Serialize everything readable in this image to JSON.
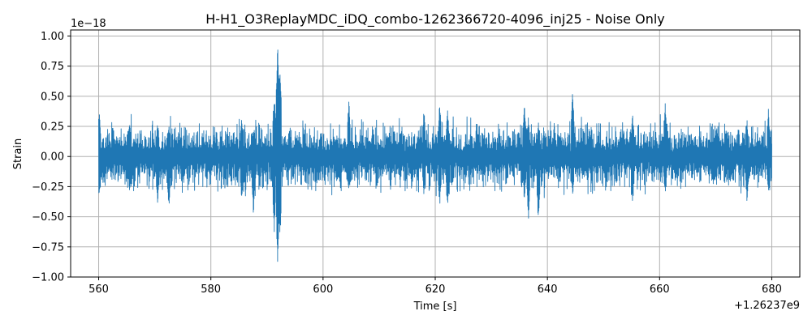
{
  "chart_data": {
    "type": "line",
    "title": "H-H1_O3ReplayMDC_iDQ_combo-1262366720-4096_inj25 - Noise Only",
    "xlabel": "Time [s]",
    "ylabel": "Strain",
    "x_offset_label": "+1.26237e9",
    "y_scale_label": "1e−18",
    "xlim": [
      555,
      685
    ],
    "ylim": [
      -1.0,
      1.05
    ],
    "x_ticks": [
      560,
      580,
      600,
      620,
      640,
      660,
      680
    ],
    "x_tick_labels": [
      "560",
      "580",
      "600",
      "620",
      "640",
      "660",
      "680"
    ],
    "y_ticks": [
      -1.0,
      -0.75,
      -0.5,
      -0.25,
      0.0,
      0.25,
      0.5,
      0.75,
      1.0
    ],
    "y_tick_labels": [
      "−1.00",
      "−0.75",
      "−0.50",
      "−0.25",
      "0.00",
      "0.25",
      "0.50",
      "0.75",
      "1.00"
    ],
    "grid": true,
    "series": [
      {
        "color": "#1f77b4",
        "x_range": [
          560,
          680
        ],
        "noise_band": 0.3,
        "features": [
          {
            "x": 560.1,
            "ymax": 0.38,
            "ymin": -0.35
          },
          {
            "x": 565.5,
            "ymax": 0.3,
            "ymin": -0.3
          },
          {
            "x": 570.5,
            "ymax": 0.3,
            "ymin": -0.4
          },
          {
            "x": 572.5,
            "ymax": 0.28,
            "ymin": -0.45
          },
          {
            "x": 585.5,
            "ymax": 0.32,
            "ymin": -0.37
          },
          {
            "x": 587.6,
            "ymax": 0.22,
            "ymin": -0.5
          },
          {
            "x": 591.3,
            "ymax": 0.55,
            "ymin": -0.65
          },
          {
            "x": 591.9,
            "ymax": 0.97,
            "ymin": -0.91
          },
          {
            "x": 592.3,
            "ymax": 0.85,
            "ymin": -0.75
          },
          {
            "x": 604.6,
            "ymax": 0.5,
            "ymin": -0.3
          },
          {
            "x": 618.0,
            "ymax": 0.4,
            "ymin": -0.35
          },
          {
            "x": 620.8,
            "ymax": 0.46,
            "ymin": -0.42
          },
          {
            "x": 622.2,
            "ymax": 0.4,
            "ymin": -0.46
          },
          {
            "x": 635.9,
            "ymax": 0.47,
            "ymin": -0.38
          },
          {
            "x": 636.6,
            "ymax": 0.35,
            "ymin": -0.55
          },
          {
            "x": 638.4,
            "ymax": 0.3,
            "ymin": -0.58
          },
          {
            "x": 644.5,
            "ymax": 0.56,
            "ymin": -0.35
          },
          {
            "x": 655.2,
            "ymax": 0.36,
            "ymin": -0.4
          },
          {
            "x": 661.0,
            "ymax": 0.46,
            "ymin": -0.32
          },
          {
            "x": 675.6,
            "ymax": 0.3,
            "ymin": -0.4
          },
          {
            "x": 679.4,
            "ymax": 0.4,
            "ymin": -0.32
          }
        ]
      }
    ]
  }
}
